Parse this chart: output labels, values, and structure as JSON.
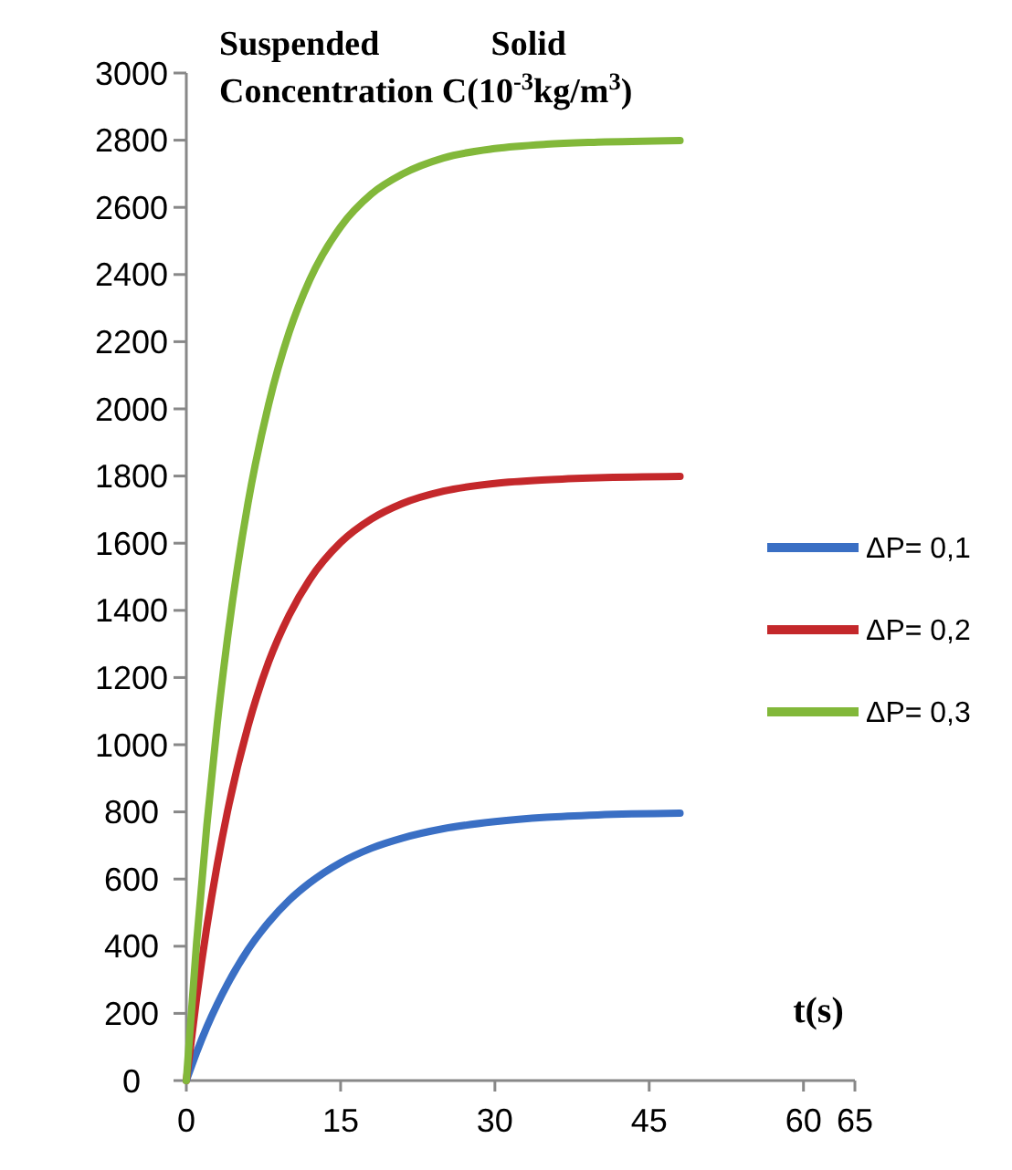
{
  "chart_data": {
    "type": "line",
    "ylabel": "Suspended Solid Concentration C(10$^{-3}$kg/m$^{3}$)",
    "xlabel": "t(s)",
    "xlim": [
      0,
      65
    ],
    "xticks": [
      0,
      15,
      30,
      45,
      60,
      65
    ],
    "ylim": [
      0,
      3000
    ],
    "yticks": [
      0,
      200,
      400,
      600,
      800,
      1000,
      1200,
      1400,
      1600,
      1800,
      2000,
      2200,
      2400,
      2600,
      2800,
      3000
    ],
    "x": [
      0,
      1,
      2,
      3,
      4,
      6,
      8,
      10,
      12,
      15,
      18,
      21,
      25,
      30,
      35,
      40,
      48
    ],
    "grid": false,
    "legend": "right",
    "marker": "none",
    "line_style": "solid",
    "series": [
      {
        "name": "ΔP= 0,1",
        "color": "#3a6fc4",
        "values": [
          0,
          84,
          160,
          227,
          287,
          390,
          471,
          537,
          589,
          649,
          692,
          722,
          750,
          771,
          784,
          791,
          796
        ]
      },
      {
        "name": "ΔP= 0,2",
        "color": "#c4282b",
        "values": [
          0,
          246,
          459,
          642,
          801,
          1055,
          1246,
          1386,
          1492,
          1602,
          1672,
          1718,
          1755,
          1778,
          1789,
          1795,
          1799
        ]
      },
      {
        "name": "ΔP= 0,3",
        "color": "#82b83a",
        "values": [
          0,
          411,
          761,
          1061,
          1316,
          1720,
          2013,
          2228,
          2384,
          2542,
          2640,
          2699,
          2747,
          2775,
          2788,
          2794,
          2799
        ]
      }
    ]
  }
}
